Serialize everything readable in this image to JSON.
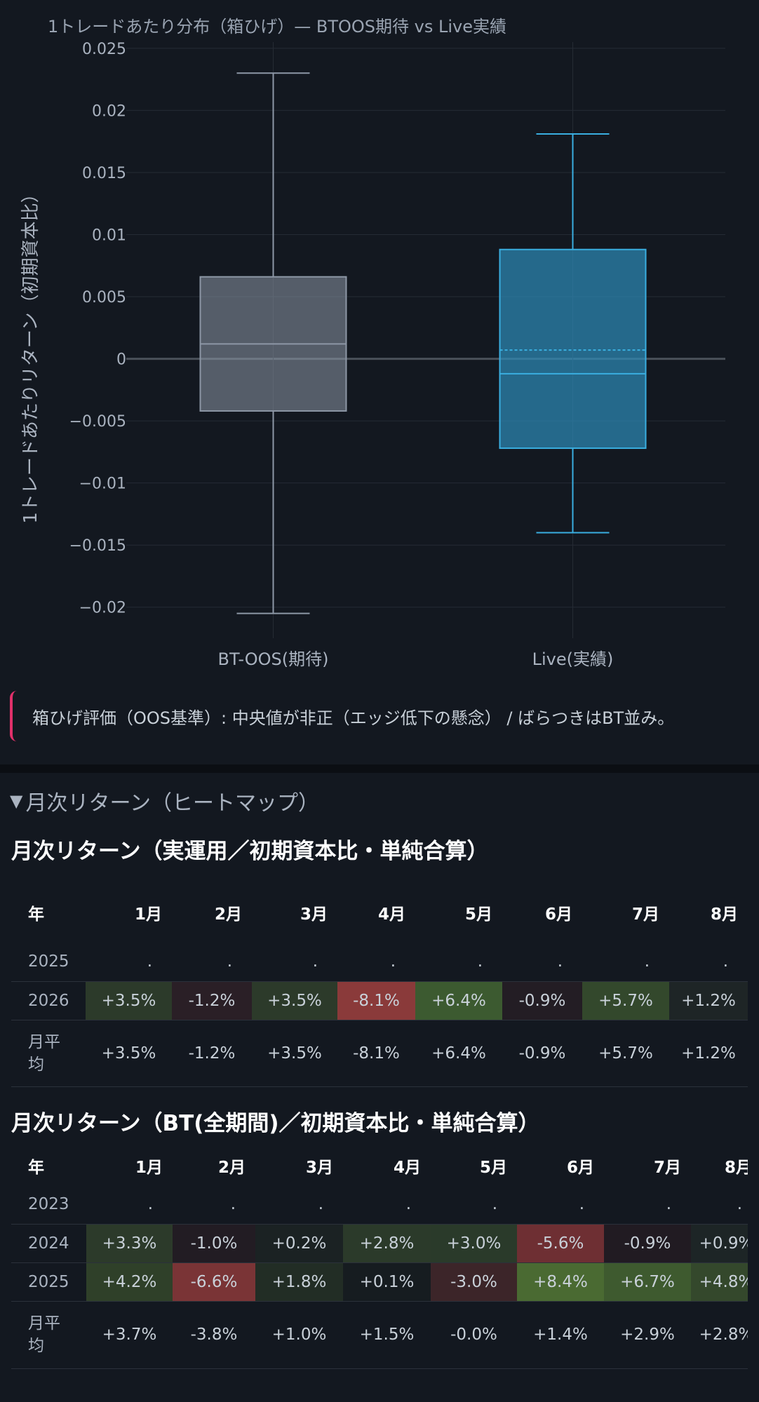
{
  "chart_data": {
    "type": "box",
    "title": "1トレードあたり分布（箱ひげ）— BTOOS期待 vs Live実績",
    "ylabel": "1トレードあたりリターン（初期資本比）",
    "ylim": [
      -0.0225,
      0.0255
    ],
    "yticks": [
      "0.025",
      "0.02",
      "0.015",
      "0.01",
      "0.005",
      "0",
      "−0.005",
      "−0.01",
      "−0.015",
      "−0.02"
    ],
    "ytick_values": [
      0.025,
      0.02,
      0.015,
      0.01,
      0.005,
      0,
      -0.005,
      -0.01,
      -0.015,
      -0.02
    ],
    "categories": [
      "BT-OOS(期待)",
      "Live(実績)"
    ],
    "boxes": [
      {
        "name": "BT-OOS(期待)",
        "min": -0.0205,
        "q1": -0.0042,
        "median": 0.0012,
        "q3": 0.0066,
        "max": 0.023,
        "color": "#8d97a6"
      },
      {
        "name": "Live(実績)",
        "min": -0.014,
        "q1": -0.0072,
        "median": -0.0012,
        "mean": 0.0007,
        "q3": 0.0088,
        "max": 0.0181,
        "color": "#3aaee0"
      }
    ]
  },
  "verdict": "箱ひげ評価（OOS基準）: 中央値が非正（エッジ低下の懸念） / ばらつきはBT並み。",
  "section": {
    "label": "月次リターン（ヒートマップ）"
  },
  "table1": {
    "title": "月次リターン（実運用／初期資本比・単純合算）",
    "headers": [
      "年",
      "1月",
      "2月",
      "3月",
      "4月",
      "5月",
      "6月",
      "7月",
      "8月"
    ],
    "rows": [
      {
        "year": "2025",
        "cells": [
          ".",
          ".",
          ".",
          ".",
          ".",
          ".",
          ".",
          "."
        ],
        "colors": [
          "",
          "",
          "",
          "",
          "",
          "",
          "",
          ""
        ]
      },
      {
        "year": "2026",
        "cells": [
          "+3.5%",
          "-1.2%",
          "+3.5%",
          "-8.1%",
          "+6.4%",
          "-0.9%",
          "+5.7%",
          "+1.2%"
        ],
        "colors": [
          "#2c3a2a",
          "#2a1f26",
          "#2c3a2a",
          "#8a3a3a",
          "#3c5a30",
          "#231d24",
          "#33482c",
          "#1e2526"
        ]
      },
      {
        "year": "月平均",
        "cells": [
          "+3.5%",
          "-1.2%",
          "+3.5%",
          "-8.1%",
          "+6.4%",
          "-0.9%",
          "+5.7%",
          "+1.2%"
        ],
        "colors": [
          "",
          "",
          "",
          "",
          "",
          "",
          "",
          ""
        ]
      }
    ]
  },
  "table2": {
    "title": "月次リターン（BT(全期間)／初期資本比・単純合算）",
    "headers": [
      "年",
      "1月",
      "2月",
      "3月",
      "4月",
      "5月",
      "6月",
      "7月",
      "8月"
    ],
    "rows": [
      {
        "year": "2023",
        "cells": [
          ".",
          ".",
          ".",
          ".",
          ".",
          ".",
          ".",
          "."
        ],
        "colors": [
          "",
          "",
          "",
          "",
          "",
          "",
          "",
          ""
        ]
      },
      {
        "year": "2024",
        "cells": [
          "+3.3%",
          "-1.0%",
          "+0.2%",
          "+2.8%",
          "+3.0%",
          "-5.6%",
          "-0.9%",
          "+0.9%"
        ],
        "colors": [
          "#2c3a2a",
          "#221c23",
          "#1b2223",
          "#2b3a2a",
          "#2a3a2a",
          "#6e2f33",
          "#211b22",
          "#1d2526"
        ]
      },
      {
        "year": "2025",
        "cells": [
          "+4.2%",
          "-6.6%",
          "+1.8%",
          "+0.1%",
          "-3.0%",
          "+8.4%",
          "+6.7%",
          "+4.8%"
        ],
        "colors": [
          "#2f4029",
          "#7a3436",
          "#222d25",
          "#161c20",
          "#3c2529",
          "#4a6a32",
          "#3e5a2f",
          "#34482c"
        ]
      },
      {
        "year": "月平均",
        "cells": [
          "+3.7%",
          "-3.8%",
          "+1.0%",
          "+1.5%",
          "-0.0%",
          "+1.4%",
          "+2.9%",
          "+2.8%"
        ],
        "colors": [
          "",
          "",
          "",
          "",
          "",
          "",
          "",
          ""
        ]
      }
    ]
  }
}
